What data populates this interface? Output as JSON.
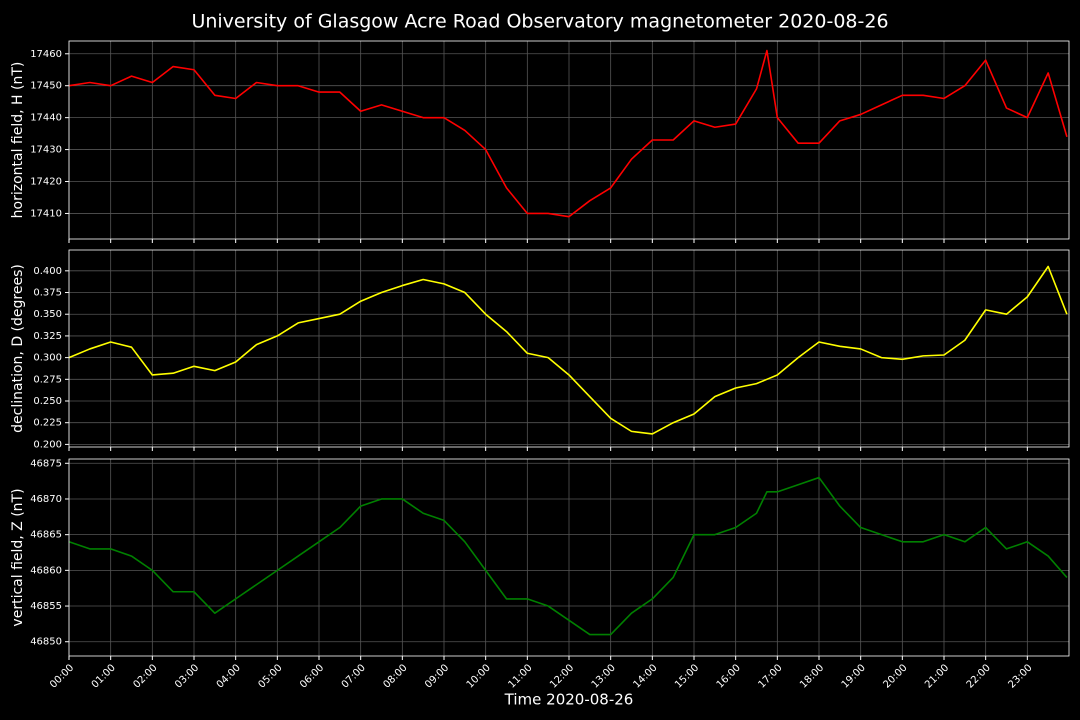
{
  "title": "University of Glasgow Acre Road Observatory magnetometer 2020-08-26",
  "chart_data": [
    {
      "type": "line",
      "ylabel": "horizontal field, H (nT)",
      "color": "#ff0000",
      "grid": true,
      "x": [
        0,
        0.5,
        1,
        1.5,
        2,
        2.5,
        3,
        3.5,
        4,
        4.5,
        5,
        5.5,
        6,
        6.5,
        7,
        7.5,
        8,
        8.5,
        9,
        9.5,
        10,
        10.5,
        11,
        11.5,
        12,
        12.5,
        13,
        13.5,
        14,
        14.5,
        15,
        15.5,
        16,
        16.5,
        16.75,
        17,
        17.5,
        18,
        18.5,
        19,
        19.5,
        20,
        20.5,
        21,
        21.5,
        22,
        22.5,
        23,
        23.5,
        23.95
      ],
      "values": [
        17450,
        17451,
        17450,
        17453,
        17451,
        17456,
        17455,
        17447,
        17446,
        17451,
        17450,
        17450,
        17448,
        17448,
        17442,
        17444,
        17442,
        17440,
        17440,
        17436,
        17430,
        17418,
        17410,
        17410,
        17409,
        17414,
        17418,
        17427,
        17433,
        17433,
        17439,
        17437,
        17438,
        17449,
        17461,
        17440,
        17432,
        17432,
        17439,
        17441,
        17444,
        17447,
        17447,
        17446,
        17450,
        17458,
        17443,
        17440,
        17454,
        17434
      ],
      "xlim": [
        0,
        24
      ],
      "xticks": [
        0,
        1,
        2,
        3,
        4,
        5,
        6,
        7,
        8,
        9,
        10,
        11,
        12,
        13,
        14,
        15,
        16,
        17,
        18,
        19,
        20,
        21,
        22,
        23
      ],
      "ylim": [
        17402,
        17464
      ],
      "yticks": [
        17410,
        17420,
        17430,
        17440,
        17450,
        17460
      ]
    },
    {
      "type": "line",
      "ylabel": "declination, D (degrees)",
      "color": "#ffff00",
      "grid": true,
      "x": [
        0,
        0.5,
        1,
        1.5,
        2,
        2.5,
        3,
        3.5,
        4,
        4.5,
        5,
        5.5,
        6,
        6.5,
        7,
        7.5,
        8,
        8.5,
        9,
        9.5,
        10,
        10.5,
        11,
        11.5,
        12,
        12.5,
        13,
        13.5,
        14,
        14.5,
        15,
        15.5,
        16,
        16.5,
        16.75,
        17,
        17.5,
        18,
        18.5,
        19,
        19.5,
        20,
        20.5,
        21,
        21.5,
        22,
        22.5,
        23,
        23.5,
        23.95
      ],
      "values": [
        0.3,
        0.31,
        0.318,
        0.312,
        0.28,
        0.282,
        0.29,
        0.285,
        0.295,
        0.315,
        0.325,
        0.34,
        0.345,
        0.35,
        0.365,
        0.375,
        0.383,
        0.39,
        0.385,
        0.375,
        0.35,
        0.33,
        0.305,
        0.3,
        0.28,
        0.255,
        0.23,
        0.215,
        0.212,
        0.225,
        0.235,
        0.255,
        0.265,
        0.27,
        0.275,
        0.28,
        0.3,
        0.318,
        0.313,
        0.31,
        0.3,
        0.298,
        0.302,
        0.303,
        0.32,
        0.355,
        0.35,
        0.37,
        0.405,
        0.35
      ],
      "xlim": [
        0,
        24
      ],
      "xticks": [
        0,
        1,
        2,
        3,
        4,
        5,
        6,
        7,
        8,
        9,
        10,
        11,
        12,
        13,
        14,
        15,
        16,
        17,
        18,
        19,
        20,
        21,
        22,
        23
      ],
      "ylim": [
        0.197,
        0.424
      ],
      "yticks": [
        {
          "value": 0.2,
          "label": "0.200"
        },
        {
          "value": 0.225,
          "label": "0.225"
        },
        {
          "value": 0.25,
          "label": "0.250"
        },
        {
          "value": 0.275,
          "label": "0.275"
        },
        {
          "value": 0.3,
          "label": "0.300"
        },
        {
          "value": 0.325,
          "label": "0.325"
        },
        {
          "value": 0.35,
          "label": "0.350"
        },
        {
          "value": 0.375,
          "label": "0.375"
        },
        {
          "value": 0.4,
          "label": "0.400"
        }
      ]
    },
    {
      "type": "line",
      "ylabel": "vertical field, Z (nT)",
      "xlabel": "Time 2020-08-26",
      "color": "#008000",
      "grid": true,
      "x": [
        0,
        0.5,
        1,
        1.5,
        2,
        2.5,
        3,
        3.5,
        4,
        4.5,
        5,
        5.5,
        6,
        6.5,
        7,
        7.5,
        8,
        8.5,
        9,
        9.5,
        10,
        10.5,
        11,
        11.5,
        12,
        12.5,
        13,
        13.5,
        14,
        14.5,
        15,
        15.5,
        16,
        16.5,
        16.75,
        17,
        17.5,
        18,
        18.5,
        19,
        19.5,
        20,
        20.5,
        21,
        21.5,
        22,
        22.5,
        23,
        23.5,
        23.95
      ],
      "values": [
        46864,
        46863,
        46863,
        46862,
        46860,
        46857,
        46857,
        46854,
        46856,
        46858,
        46860,
        46862,
        46864,
        46866,
        46869,
        46870,
        46870,
        46868,
        46867,
        46864,
        46860,
        46856,
        46856,
        46855,
        46853,
        46851,
        46851,
        46854,
        46856,
        46859,
        46865,
        46865,
        46866,
        46868,
        46871,
        46871,
        46872,
        46873,
        46869,
        46866,
        46865,
        46864,
        46864,
        46865,
        46864,
        46866,
        46863,
        46864,
        46862,
        46859
      ],
      "xlim": [
        0,
        24
      ],
      "xticks": [
        {
          "value": 0,
          "label": "00:00"
        },
        {
          "value": 1,
          "label": "01:00"
        },
        {
          "value": 2,
          "label": "02:00"
        },
        {
          "value": 3,
          "label": "03:00"
        },
        {
          "value": 4,
          "label": "04:00"
        },
        {
          "value": 5,
          "label": "05:00"
        },
        {
          "value": 6,
          "label": "06:00"
        },
        {
          "value": 7,
          "label": "07:00"
        },
        {
          "value": 8,
          "label": "08:00"
        },
        {
          "value": 9,
          "label": "09:00"
        },
        {
          "value": 10,
          "label": "10:00"
        },
        {
          "value": 11,
          "label": "11:00"
        },
        {
          "value": 12,
          "label": "12:00"
        },
        {
          "value": 13,
          "label": "13:00"
        },
        {
          "value": 14,
          "label": "14:00"
        },
        {
          "value": 15,
          "label": "15:00"
        },
        {
          "value": 16,
          "label": "16:00"
        },
        {
          "value": 17,
          "label": "17:00"
        },
        {
          "value": 18,
          "label": "18:00"
        },
        {
          "value": 19,
          "label": "19:00"
        },
        {
          "value": 20,
          "label": "20:00"
        },
        {
          "value": 21,
          "label": "21:00"
        },
        {
          "value": 22,
          "label": "22:00"
        },
        {
          "value": 23,
          "label": "23:00"
        }
      ],
      "ylim": [
        46848,
        46875.6
      ],
      "yticks": [
        46850,
        46855,
        46860,
        46865,
        46870,
        46875
      ]
    }
  ]
}
